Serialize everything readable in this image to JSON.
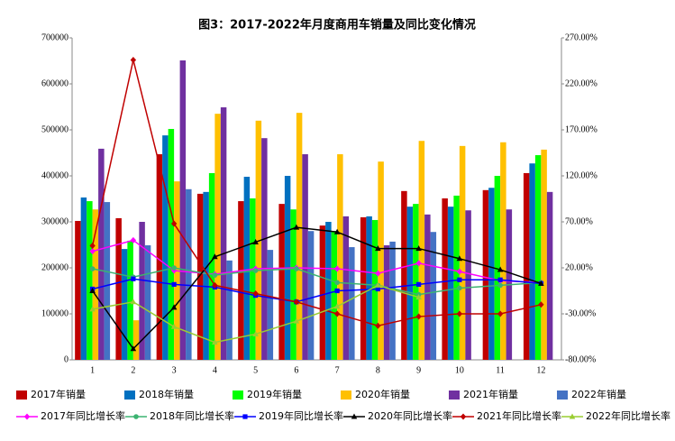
{
  "chart_data": {
    "type": "bar",
    "title": "图3：2017-2022年月度商用车销量及同比变化情况",
    "categories": [
      "1",
      "2",
      "3",
      "4",
      "5",
      "6",
      "7",
      "8",
      "9",
      "10",
      "11",
      "12"
    ],
    "ylim": [
      0,
      700000
    ],
    "yticks": [
      0,
      100000,
      200000,
      300000,
      400000,
      500000,
      600000,
      700000
    ],
    "y2lim": [
      -80,
      270
    ],
    "y2ticks": [
      {
        "value": -80,
        "label": "-80.00%"
      },
      {
        "value": -30,
        "label": "-30.00%"
      },
      {
        "value": 20,
        "label": "20.00%"
      },
      {
        "value": 70,
        "label": "70.00%"
      },
      {
        "value": 120,
        "label": "120.00%"
      },
      {
        "value": 170,
        "label": "170.00%"
      },
      {
        "value": 220,
        "label": "220.00%"
      },
      {
        "value": 270,
        "label": "270.00%"
      }
    ],
    "series": [
      {
        "name": "2017年销量",
        "type": "bar",
        "color": "#c00000",
        "values": [
          302000,
          308000,
          447000,
          361000,
          345000,
          339000,
          292000,
          310000,
          367000,
          351000,
          369000,
          406000
        ]
      },
      {
        "name": "2018年销量",
        "type": "bar",
        "color": "#0070c0",
        "values": [
          353000,
          241000,
          488000,
          365000,
          398000,
          400000,
          300000,
          312000,
          333000,
          333000,
          374000,
          427000
        ]
      },
      {
        "name": "2019年销量",
        "type": "bar",
        "color": "#00ff00",
        "values": [
          345000,
          259000,
          502000,
          406000,
          351000,
          327000,
          280000,
          304000,
          339000,
          357000,
          400000,
          445000
        ]
      },
      {
        "name": "2020年销量",
        "type": "bar",
        "color": "#ffc000",
        "values": [
          327000,
          86000,
          388000,
          535000,
          520000,
          537000,
          447000,
          431000,
          476000,
          465000,
          473000,
          457000
        ]
      },
      {
        "name": "2021年销量",
        "type": "bar",
        "color": "#7030a0",
        "values": [
          459000,
          300000,
          651000,
          549000,
          482000,
          447000,
          312000,
          249000,
          316000,
          325000,
          327000,
          365000
        ]
      },
      {
        "name": "2022年销量",
        "type": "bar",
        "color": "#4472c4",
        "values": [
          343000,
          249000,
          371000,
          216000,
          239000,
          280000,
          245000,
          257000,
          278000,
          null,
          null,
          null
        ]
      },
      {
        "name": "2017年同比增长率",
        "type": "line",
        "axis": "y2",
        "marker": "diamond",
        "color": "#ff00ff",
        "values": [
          38,
          50,
          17,
          13,
          19,
          20,
          19,
          14,
          25,
          16,
          6,
          4
        ]
      },
      {
        "name": "2018年同比增长率",
        "type": "line",
        "axis": "y2",
        "marker": "circle",
        "color": "#3cb371",
        "values": [
          19,
          10,
          20,
          12,
          17,
          19,
          4,
          1,
          -9,
          -2,
          1,
          4
        ]
      },
      {
        "name": "2019年同比增长率",
        "type": "line",
        "axis": "y2",
        "marker": "square",
        "color": "#0000ff",
        "values": [
          -3,
          8,
          2,
          -1,
          -10,
          -17,
          -5,
          -3,
          2,
          7,
          7,
          3
        ]
      },
      {
        "name": "2020年同比增长率",
        "type": "line",
        "axis": "y2",
        "marker": "triangle",
        "color": "#000000",
        "values": [
          -5,
          -68,
          -23,
          32,
          48,
          64,
          59,
          41,
          41,
          30,
          18,
          3
        ]
      },
      {
        "name": "2021年同比增长率",
        "type": "line",
        "axis": "y2",
        "marker": "diamond",
        "color": "#c00000",
        "values": [
          44,
          246,
          68,
          1,
          -8,
          -17,
          -30,
          -43,
          -33,
          -30,
          -30,
          -20
        ]
      },
      {
        "name": "2022年同比增长率",
        "type": "line",
        "axis": "y2",
        "marker": "triangle",
        "color": "#9acd32",
        "values": [
          -25,
          -17,
          -44,
          -61,
          -52,
          -38,
          -22,
          1,
          -12,
          null,
          null,
          null
        ]
      }
    ]
  }
}
